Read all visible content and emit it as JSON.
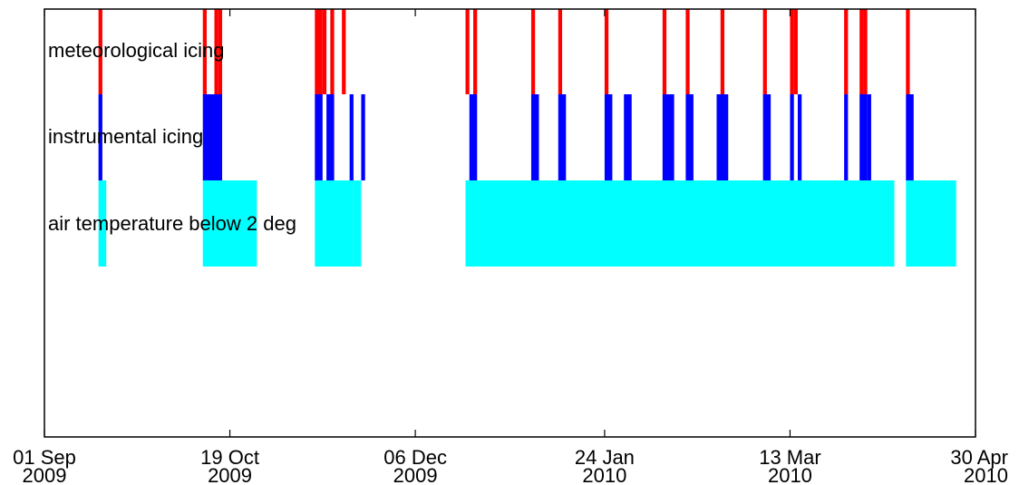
{
  "chart_data": {
    "type": "timeline",
    "title": "",
    "xlabel": "",
    "ylabel": "",
    "x_range": [
      "2009-09-01",
      "2010-04-30"
    ],
    "x_ticks": [
      {
        "date": "2009-09-01",
        "line1": "01 Sep",
        "line2": "2009"
      },
      {
        "date": "2009-10-19",
        "line1": "19 Oct",
        "line2": "2009"
      },
      {
        "date": "2009-12-06",
        "line1": "06 Dec",
        "line2": "2009"
      },
      {
        "date": "2010-01-24",
        "line1": "24 Jan",
        "line2": "2010"
      },
      {
        "date": "2010-03-13",
        "line1": "13 Mar",
        "line2": "2010"
      },
      {
        "date": "2010-04-30",
        "line1": "30 Apr",
        "line2": "2010"
      }
    ],
    "grid": false,
    "series": [
      {
        "name": "meteorological icing",
        "color": "#ff0000",
        "intervals": [
          [
            "2009-09-15",
            "2009-09-15"
          ],
          [
            "2009-10-12",
            "2009-10-12"
          ],
          [
            "2009-10-15",
            "2009-10-15"
          ],
          [
            "2009-10-16",
            "2009-10-16"
          ],
          [
            "2009-11-10",
            "2009-11-11"
          ],
          [
            "2009-11-12",
            "2009-11-12"
          ],
          [
            "2009-11-14",
            "2009-11-14"
          ],
          [
            "2009-11-17",
            "2009-11-17"
          ],
          [
            "2009-12-19",
            "2009-12-19"
          ],
          [
            "2009-12-21",
            "2009-12-21"
          ],
          [
            "2010-01-05",
            "2010-01-05"
          ],
          [
            "2010-01-12",
            "2010-01-12"
          ],
          [
            "2010-01-24",
            "2010-01-24"
          ],
          [
            "2010-02-08",
            "2010-02-08"
          ],
          [
            "2010-02-14",
            "2010-02-14"
          ],
          [
            "2010-02-23",
            "2010-02-23"
          ],
          [
            "2010-03-06",
            "2010-03-06"
          ],
          [
            "2010-03-13",
            "2010-03-13"
          ],
          [
            "2010-03-14",
            "2010-03-14"
          ],
          [
            "2010-03-27",
            "2010-03-27"
          ],
          [
            "2010-03-31",
            "2010-03-31"
          ],
          [
            "2010-04-01",
            "2010-04-01"
          ],
          [
            "2010-04-12",
            "2010-04-12"
          ]
        ]
      },
      {
        "name": "instrumental icing",
        "color": "#0000ff",
        "intervals": [
          [
            "2009-09-15",
            "2009-09-15"
          ],
          [
            "2009-10-12",
            "2009-10-16"
          ],
          [
            "2009-11-10",
            "2009-11-11"
          ],
          [
            "2009-11-13",
            "2009-11-14"
          ],
          [
            "2009-11-19",
            "2009-11-19"
          ],
          [
            "2009-11-22",
            "2009-11-22"
          ],
          [
            "2009-12-20",
            "2009-12-21"
          ],
          [
            "2010-01-05",
            "2010-01-06"
          ],
          [
            "2010-01-12",
            "2010-01-13"
          ],
          [
            "2010-01-24",
            "2010-01-25"
          ],
          [
            "2010-01-29",
            "2010-01-30"
          ],
          [
            "2010-02-08",
            "2010-02-10"
          ],
          [
            "2010-02-14",
            "2010-02-15"
          ],
          [
            "2010-02-22",
            "2010-02-24"
          ],
          [
            "2010-03-06",
            "2010-03-07"
          ],
          [
            "2010-03-13",
            "2010-03-13"
          ],
          [
            "2010-03-15",
            "2010-03-15"
          ],
          [
            "2010-03-27",
            "2010-03-27"
          ],
          [
            "2010-03-31",
            "2010-04-01"
          ],
          [
            "2010-04-02",
            "2010-04-02"
          ],
          [
            "2010-04-12",
            "2010-04-13"
          ]
        ]
      },
      {
        "name": "air temperature below 2 deg",
        "color": "#00ffff",
        "intervals": [
          [
            "2009-09-15",
            "2009-09-16"
          ],
          [
            "2009-10-12",
            "2009-10-25"
          ],
          [
            "2009-11-10",
            "2009-11-19"
          ],
          [
            "2009-11-20",
            "2009-11-21"
          ],
          [
            "2009-12-19",
            "2010-04-08"
          ],
          [
            "2010-04-12",
            "2010-04-24"
          ]
        ]
      }
    ]
  }
}
